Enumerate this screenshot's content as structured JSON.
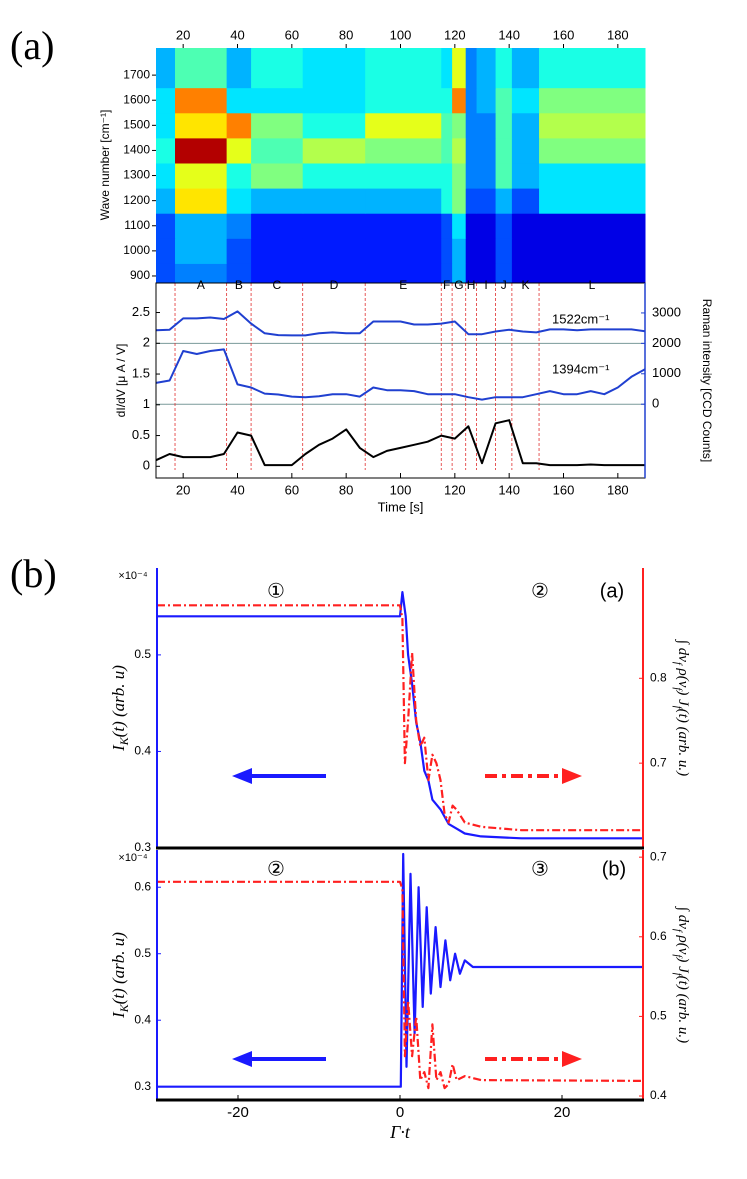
{
  "panel_labels": [
    "(a)",
    "(b)"
  ],
  "chart_data": [
    {
      "type": "heatmap",
      "y_label": "Wave number [cm⁻¹]",
      "xlim": [
        10,
        190
      ],
      "xticks": [
        20,
        40,
        60,
        80,
        100,
        120,
        140,
        160,
        180
      ],
      "ylim": [
        876,
        1808
      ],
      "yticks": [
        900,
        1000,
        1100,
        1200,
        1300,
        1400,
        1500,
        1600,
        1700
      ],
      "colormap": "jet",
      "x_edges": [
        10,
        17,
        36,
        45,
        64,
        87,
        115,
        119,
        124,
        128,
        135,
        141,
        151,
        190
      ],
      "y_edges": [
        876,
        950,
        1050,
        1150,
        1250,
        1350,
        1450,
        1550,
        1650,
        1808
      ],
      "z": [
        [
          0.2,
          0.25,
          0.2,
          0.15,
          0.15,
          0.15,
          0.2,
          0.3,
          0.1,
          0.1,
          0.2,
          0.1,
          0.1
        ],
        [
          0.2,
          0.3,
          0.2,
          0.15,
          0.15,
          0.15,
          0.2,
          0.3,
          0.1,
          0.1,
          0.2,
          0.1,
          0.1
        ],
        [
          0.2,
          0.3,
          0.25,
          0.15,
          0.15,
          0.15,
          0.2,
          0.35,
          0.1,
          0.1,
          0.2,
          0.1,
          0.1
        ],
        [
          0.3,
          0.65,
          0.35,
          0.3,
          0.3,
          0.3,
          0.4,
          0.5,
          0.2,
          0.2,
          0.3,
          0.2,
          0.35
        ],
        [
          0.35,
          0.6,
          0.4,
          0.5,
          0.4,
          0.4,
          0.4,
          0.5,
          0.25,
          0.25,
          0.45,
          0.3,
          0.35
        ],
        [
          0.4,
          0.95,
          0.6,
          0.45,
          0.55,
          0.5,
          0.45,
          0.55,
          0.25,
          0.25,
          0.45,
          0.3,
          0.5
        ],
        [
          0.35,
          0.65,
          0.75,
          0.5,
          0.4,
          0.6,
          0.45,
          0.5,
          0.25,
          0.25,
          0.45,
          0.3,
          0.55
        ],
        [
          0.35,
          0.75,
          0.35,
          0.35,
          0.35,
          0.4,
          0.4,
          0.75,
          0.25,
          0.3,
          0.45,
          0.35,
          0.5
        ],
        [
          0.3,
          0.45,
          0.3,
          0.4,
          0.35,
          0.4,
          0.35,
          0.6,
          0.25,
          0.3,
          0.4,
          0.3,
          0.4
        ]
      ],
      "segment_labels": [
        "A",
        "B",
        "C",
        "D",
        "E",
        "F",
        "G",
        "H",
        "I",
        "J",
        "K",
        "L"
      ]
    },
    {
      "type": "line",
      "x_label": "Time [s]",
      "y_label": "dI/dV [μ A / V]",
      "y2_label": "Raman intensity [CCD Counts]",
      "xlim": [
        10,
        190
      ],
      "xticks": [
        20,
        40,
        60,
        80,
        100,
        120,
        140,
        160,
        180
      ],
      "ylim": [
        -0.19,
        2.98
      ],
      "yticks": [
        0,
        0.5,
        1,
        1.5,
        2,
        2.5
      ],
      "y2lim": [
        -2426,
        3984
      ],
      "y2ticks": [
        0,
        1000,
        2000,
        3000
      ],
      "y2_reference_lines": [
        0,
        2000
      ],
      "x": [
        10,
        15,
        20,
        25,
        30,
        35,
        40,
        45,
        50,
        55,
        60,
        65,
        70,
        75,
        80,
        85,
        90,
        95,
        100,
        105,
        110,
        115,
        120,
        125,
        130,
        135,
        140,
        145,
        150,
        155,
        160,
        165,
        170,
        175,
        180,
        185,
        190
      ],
      "series": [
        {
          "name": "1522cm⁻¹",
          "color": "#2040d0",
          "axis": "y2",
          "values": [
            2430,
            2450,
            2820,
            2820,
            2850,
            2800,
            3050,
            2650,
            2330,
            2270,
            2260,
            2260,
            2330,
            2360,
            2330,
            2330,
            2720,
            2720,
            2720,
            2620,
            2620,
            2650,
            2720,
            2300,
            2300,
            2390,
            2450,
            2390,
            2360,
            2460,
            2460,
            2430,
            2460,
            2460,
            2460,
            2460,
            2400
          ]
        },
        {
          "name": "1394cm⁻¹",
          "color": "#2040d0",
          "axis": "y2",
          "values": [
            700,
            780,
            1750,
            1650,
            1750,
            1800,
            650,
            550,
            350,
            320,
            250,
            230,
            260,
            330,
            330,
            250,
            550,
            460,
            460,
            430,
            330,
            330,
            330,
            230,
            150,
            230,
            230,
            230,
            330,
            430,
            330,
            330,
            430,
            330,
            550,
            900,
            1150
          ]
        },
        {
          "color": "#000000",
          "values": [
            0.1,
            0.2,
            0.15,
            0.15,
            0.15,
            0.2,
            0.55,
            0.5,
            0.02,
            0.02,
            0.02,
            0.2,
            0.35,
            0.45,
            0.6,
            0.3,
            0.15,
            0.25,
            0.3,
            0.35,
            0.4,
            0.5,
            0.45,
            0.65,
            0.05,
            0.7,
            0.75,
            0.05,
            0.05,
            0.02,
            0.02,
            0.02,
            0.03,
            0.02,
            0.02,
            0.02,
            0.02
          ]
        }
      ]
    },
    {
      "type": "line",
      "y_label": [
        {
          "text": "I"
        },
        {
          "text": "K",
          "sub": true
        },
        {
          "text": "(t) (arb. u)"
        }
      ],
      "y2_label": [
        {
          "text": "∫ dν"
        },
        {
          "text": "f",
          "sub": true
        },
        {
          "text": " ρ(ν"
        },
        {
          "text": "f",
          "sub": true
        },
        {
          "text": ") J"
        },
        {
          "text": "f",
          "sub": true
        },
        {
          "text": "(t)  (arb. u.)"
        }
      ],
      "y_multiplier": "×10⁻⁴",
      "annotations": [
        "①",
        "②",
        "(a)"
      ],
      "xlim": [
        -30,
        30
      ],
      "ylim": [
        0.3,
        0.59
      ],
      "yticks": [
        0.3,
        0.4,
        0.5
      ],
      "y2lim": [
        0.6,
        0.93
      ],
      "y2ticks": [
        0.7,
        0.8
      ],
      "series": [
        {
          "color": "#1a1aff",
          "x": [
            -30,
            -1,
            0,
            0.3,
            0.7,
            1,
            1.5,
            2,
            2.5,
            3,
            3.5,
            4,
            5,
            6,
            7,
            8,
            10,
            15,
            30
          ],
          "values": [
            0.54,
            0.54,
            0.54,
            0.565,
            0.54,
            0.5,
            0.47,
            0.43,
            0.41,
            0.38,
            0.37,
            0.35,
            0.34,
            0.325,
            0.32,
            0.315,
            0.312,
            0.31,
            0.31
          ]
        },
        {
          "color": "#ff2020",
          "axis": "y2",
          "line_style": "dash-dot",
          "x": [
            -30,
            0,
            0.3,
            0.6,
            1,
            1.5,
            2,
            2.5,
            3,
            3.5,
            4,
            4.5,
            5,
            5.5,
            6,
            6.5,
            7,
            8,
            10,
            15,
            30
          ],
          "values": [
            0.886,
            0.886,
            0.87,
            0.7,
            0.75,
            0.83,
            0.75,
            0.72,
            0.73,
            0.68,
            0.71,
            0.7,
            0.68,
            0.64,
            0.63,
            0.65,
            0.645,
            0.63,
            0.625,
            0.621,
            0.621
          ]
        }
      ]
    },
    {
      "type": "line",
      "x_label": "Γ·t",
      "y_label": [
        {
          "text": "I"
        },
        {
          "text": "K",
          "sub": true
        },
        {
          "text": "(t) (arb. u)"
        }
      ],
      "y2_label": [
        {
          "text": "∫ dν"
        },
        {
          "text": "f",
          "sub": true
        },
        {
          "text": " ρ(ν"
        },
        {
          "text": "f",
          "sub": true
        },
        {
          "text": ") J"
        },
        {
          "text": "f",
          "sub": true
        },
        {
          "text": "(t)  (arb. u.)"
        }
      ],
      "y_multiplier": "×10⁻⁴",
      "annotations": [
        "②",
        "③",
        "(b)"
      ],
      "xlim": [
        -30,
        30
      ],
      "xticks": [
        -20,
        0,
        20
      ],
      "ylim": [
        0.28,
        0.656
      ],
      "yticks": [
        0.3,
        0.4,
        0.5,
        0.6
      ],
      "y2lim": [
        0.395,
        0.709
      ],
      "y2ticks": [
        0.4,
        0.5,
        0.6,
        0.7
      ],
      "series": [
        {
          "color": "#1a1aff",
          "x": [
            -30,
            0,
            0.1,
            0.4,
            0.8,
            1.3,
            1.8,
            2.3,
            2.8,
            3.3,
            3.8,
            4.4,
            5,
            5.6,
            6.2,
            6.8,
            7.4,
            8,
            9,
            12,
            30
          ],
          "values": [
            0.3,
            0.3,
            0.3,
            0.65,
            0.33,
            0.62,
            0.38,
            0.6,
            0.42,
            0.57,
            0.44,
            0.54,
            0.45,
            0.52,
            0.46,
            0.5,
            0.47,
            0.49,
            0.48,
            0.48,
            0.48
          ]
        },
        {
          "color": "#ff2020",
          "axis": "y2",
          "line_style": "dash-dot",
          "x": [
            -30,
            0,
            0.3,
            0.6,
            1,
            1.5,
            2,
            2.5,
            3,
            3.5,
            4,
            4.5,
            5,
            5.5,
            6,
            6.5,
            7,
            8,
            10,
            30
          ],
          "values": [
            0.669,
            0.669,
            0.66,
            0.45,
            0.52,
            0.45,
            0.5,
            0.42,
            0.43,
            0.41,
            0.49,
            0.42,
            0.43,
            0.41,
            0.415,
            0.44,
            0.42,
            0.425,
            0.42,
            0.419
          ]
        }
      ]
    }
  ]
}
